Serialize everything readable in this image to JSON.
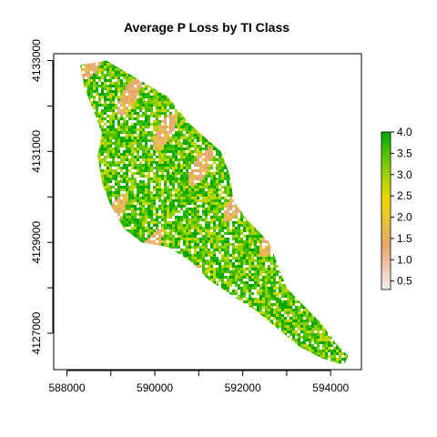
{
  "chart_data": {
    "type": "heatmap",
    "title": "Average P Loss by TI Class",
    "xlabel": "",
    "ylabel": "",
    "xlim": [
      587700,
      594700
    ],
    "ylim": [
      4126200,
      4133150
    ],
    "x_ticks": [
      588000,
      589000,
      590000,
      591000,
      592000,
      593000,
      594000
    ],
    "x_tick_labels": [
      "588000",
      "",
      "590000",
      "",
      "592000",
      "",
      "594000"
    ],
    "y_ticks": [
      4127000,
      4128000,
      4129000,
      4130000,
      4131000,
      4132000,
      4133000
    ],
    "y_tick_labels": [
      "4127000",
      "",
      "4129000",
      "",
      "4131000",
      "",
      "4133000"
    ],
    "colorbar": {
      "range": [
        0.3,
        4.0
      ],
      "ticks": [
        0.5,
        1.0,
        1.5,
        2.0,
        2.5,
        3.0,
        3.5,
        4.0
      ],
      "tick_labels": [
        "0.5",
        "1.0",
        "1.5",
        "2.0",
        "2.5",
        "3.0",
        "3.5",
        "4.0"
      ],
      "colors": [
        "#f2f2f2",
        "#eec7b0",
        "#e6a56a",
        "#e8c23c",
        "#ecd800",
        "#a8d500",
        "#53c300",
        "#00a600"
      ]
    },
    "watershed_outline": [
      [
        588300,
        4132900
      ],
      [
        588900,
        4133000
      ],
      [
        589600,
        4132600
      ],
      [
        590300,
        4132200
      ],
      [
        590800,
        4131600
      ],
      [
        591500,
        4131000
      ],
      [
        591700,
        4130500
      ],
      [
        591800,
        4129900
      ],
      [
        592100,
        4129500
      ],
      [
        592600,
        4129000
      ],
      [
        592800,
        4128500
      ],
      [
        593000,
        4128000
      ],
      [
        593400,
        4127600
      ],
      [
        593800,
        4127200
      ],
      [
        594100,
        4126800
      ],
      [
        594400,
        4126500
      ],
      [
        594300,
        4126300
      ],
      [
        593800,
        4126450
      ],
      [
        593300,
        4126700
      ],
      [
        592800,
        4127100
      ],
      [
        592300,
        4127500
      ],
      [
        591800,
        4127800
      ],
      [
        591200,
        4128200
      ],
      [
        590800,
        4128600
      ],
      [
        590300,
        4128900
      ],
      [
        589700,
        4129000
      ],
      [
        589300,
        4129300
      ],
      [
        589000,
        4129800
      ],
      [
        588800,
        4130300
      ],
      [
        588700,
        4130900
      ],
      [
        588800,
        4131400
      ],
      [
        588600,
        4131900
      ],
      [
        588400,
        4132400
      ]
    ]
  }
}
